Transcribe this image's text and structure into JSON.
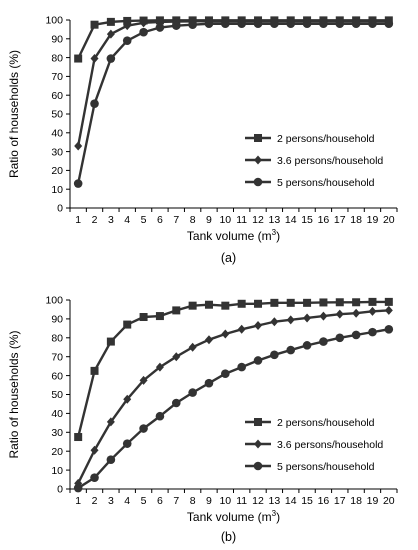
{
  "chart_data": [
    {
      "type": "line",
      "panel_label": "(a)",
      "xlabel_main": "Tank volume (m",
      "xlabel_sup": "3",
      "xlabel_end": ")",
      "ylabel": "Ratio of households (%)",
      "ylim": [
        0,
        100
      ],
      "yticks": [
        "0",
        "10",
        "20",
        "30",
        "40",
        "50",
        "60",
        "70",
        "80",
        "90",
        "100"
      ],
      "x": [
        "1",
        "2",
        "3",
        "4",
        "5",
        "6",
        "7",
        "8",
        "9",
        "10",
        "11",
        "12",
        "13",
        "14",
        "15",
        "16",
        "17",
        "18",
        "19",
        "20"
      ],
      "grid": false,
      "legend_position": "right",
      "series": [
        {
          "name": "2 persons/household",
          "marker": "square",
          "values": [
            79.5,
            97.5,
            99,
            99.5,
            99.7,
            99.8,
            99.8,
            99.8,
            99.8,
            99.8,
            99.8,
            99.8,
            99.8,
            99.8,
            99.8,
            99.8,
            99.8,
            99.8,
            99.8,
            99.8
          ]
        },
        {
          "name": "3.6 persons/household",
          "marker": "diamond",
          "values": [
            33,
            79.5,
            92.5,
            97,
            98.5,
            99,
            99.2,
            99.3,
            99.4,
            99.4,
            99.4,
            99.4,
            99.4,
            99.4,
            99.4,
            99.4,
            99.4,
            99.4,
            99.4,
            99.4
          ]
        },
        {
          "name": "5 persons/household",
          "marker": "circle",
          "values": [
            13,
            55.5,
            79.5,
            89,
            93.5,
            96,
            97,
            97.5,
            98,
            98,
            98,
            98,
            98,
            98,
            98,
            98,
            98,
            98,
            98,
            98
          ]
        }
      ]
    },
    {
      "type": "line",
      "panel_label": "(b)",
      "xlabel_main": "Tank volume (m",
      "xlabel_sup": "3",
      "xlabel_end": ")",
      "ylabel": "Ratio of households (%)",
      "ylim": [
        0,
        100
      ],
      "yticks": [
        "0",
        "10",
        "20",
        "30",
        "40",
        "50",
        "60",
        "70",
        "80",
        "90",
        "100"
      ],
      "x": [
        "1",
        "2",
        "3",
        "4",
        "5",
        "6",
        "7",
        "8",
        "9",
        "10",
        "11",
        "12",
        "13",
        "14",
        "15",
        "16",
        "17",
        "18",
        "19",
        "20"
      ],
      "grid": false,
      "legend_position": "bottom-right",
      "series": [
        {
          "name": "2 persons/household",
          "marker": "square",
          "values": [
            27.5,
            62.5,
            78,
            87,
            91,
            91.5,
            94.5,
            97,
            97.5,
            97,
            98,
            98,
            98.5,
            98.5,
            98.5,
            98.7,
            98.8,
            98.8,
            99,
            99
          ]
        },
        {
          "name": "3.6 persons/household",
          "marker": "diamond",
          "values": [
            3,
            20.5,
            35.5,
            47.5,
            57.5,
            64.5,
            70,
            75,
            79,
            82,
            84.5,
            86.5,
            88.5,
            89.5,
            90.5,
            91.5,
            92.5,
            93,
            94,
            94.5
          ]
        },
        {
          "name": "5 persons/household",
          "marker": "circle",
          "values": [
            0.5,
            6,
            15.5,
            24,
            32,
            38.5,
            45.5,
            51,
            56,
            61,
            64.5,
            68,
            71,
            73.5,
            76,
            78,
            80,
            81.5,
            83,
            84.5
          ]
        }
      ]
    }
  ]
}
